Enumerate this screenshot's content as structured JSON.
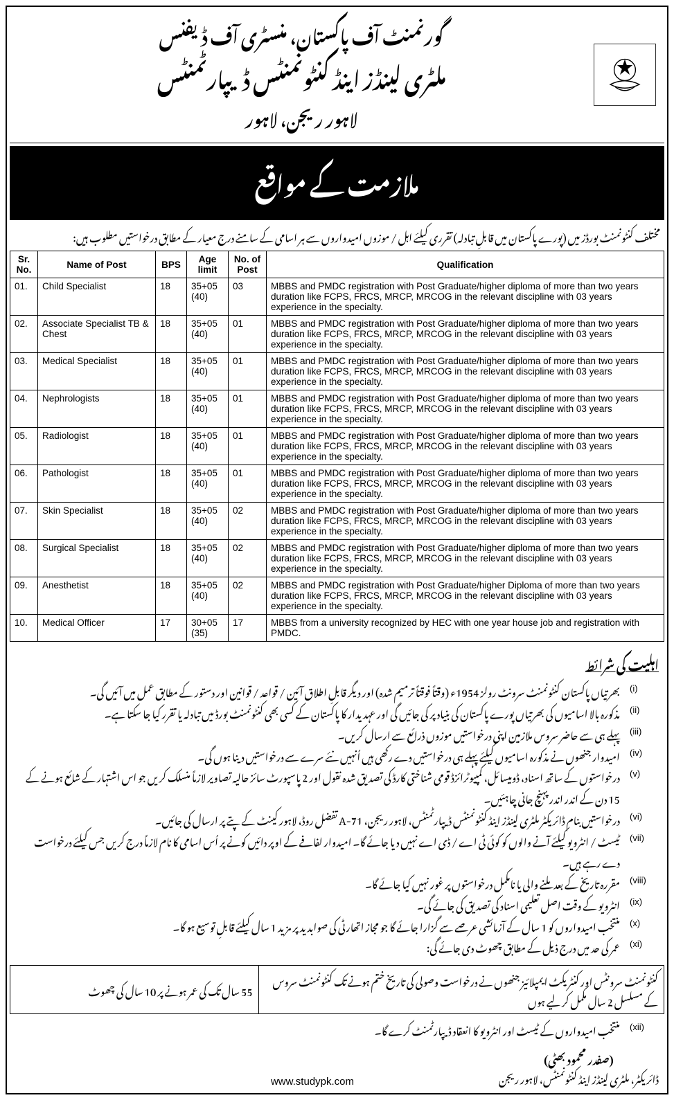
{
  "header": {
    "line1": "گورنمنٹ آف پاکستان، منسٹری آف ڈیفنس",
    "line2": "ملٹری لینڈز اینڈ کنٹونمنٹس ڈیپارٹمنٹس",
    "line3": "لاہور ریجن، لاہور"
  },
  "title_bar": "ملازمت کے مواقع",
  "intro": "مختلف کنٹونمنٹ بورڈز میں (پورے پاکستان میں قابلِ تبادلہ) تقرری کیلئے اہل / موزوں امیدواروں سے ہر اسامی کے سامنے درج معیار کے مطابق درخواستیں مطلوب ہیں:",
  "table": {
    "columns": [
      "Sr. No.",
      "Name of Post",
      "BPS",
      "Age limit",
      "No. of Post",
      "Qualification"
    ],
    "rows": [
      {
        "sr": "01.",
        "name": "Child Specialist",
        "bps": "18",
        "age": "35+05 (40)",
        "num": "03",
        "qual": "MBBS and PMDC registration with Post Graduate/higher diploma of more than two years duration like FCPS, FRCS, MRCP, MRCOG in the relevant discipline with 03 years experience in the specialty."
      },
      {
        "sr": "02.",
        "name": "Associate Specialist TB & Chest",
        "bps": "18",
        "age": "35+05 (40)",
        "num": "01",
        "qual": "MBBS and PMDC registration with Post Graduate/higher diploma of more than two years duration like FCPS, FRCS, MRCP, MRCOG in the relevant discipline with 03 years experience in the specialty."
      },
      {
        "sr": "03.",
        "name": "Medical Specialist",
        "bps": "18",
        "age": "35+05 (40)",
        "num": "01",
        "qual": "MBBS and PMDC registration with Post Graduate/higher diploma of more than two years duration like FCPS, FRCS, MRCP, MRCOG in the relevant discipline with 03 years experience in the specialty."
      },
      {
        "sr": "04.",
        "name": "Nephrologists",
        "bps": "18",
        "age": "35+05 (40)",
        "num": "01",
        "qual": "MBBS and PMDC registration with Post Graduate/higher diploma of more than two years duration like FCPS, FRCS, MRCP, MRCOG in the relevant discipline with 03 years experience in the specialty."
      },
      {
        "sr": "05.",
        "name": "Radiologist",
        "bps": "18",
        "age": "35+05 (40)",
        "num": "01",
        "qual": "MBBS and PMDC registration with Post Graduate/higher diploma of more than two years duration like FCPS, FRCS, MRCP, MRCOG in the relevant discipline with 03 years experience in the specialty."
      },
      {
        "sr": "06.",
        "name": "Pathologist",
        "bps": "18",
        "age": "35+05 (40)",
        "num": "01",
        "qual": "MBBS and PMDC registration with Post Graduate/higher diploma of more than two years duration like FCPS, FRCS, MRCP, MRCOG in the relevant discipline with 03 years experience in the specialty."
      },
      {
        "sr": "07.",
        "name": "Skin Specialist",
        "bps": "18",
        "age": "35+05 (40)",
        "num": "02",
        "qual": "MBBS and PMDC registration with Post Graduate/higher diploma of more than two years duration like FCPS, FRCS, MRCP, MRCOG in the relevant discipline with 03 years experience in the specialty."
      },
      {
        "sr": "08.",
        "name": "Surgical Specialist",
        "bps": "18",
        "age": "35+05 (40)",
        "num": "02",
        "qual": "MBBS and PMDC registration with Post Graduate/higher diploma of more than two years duration like FCPS, FRCS, MRCP, MRCOG in the relevant discipline with 03 years experience in the specialty."
      },
      {
        "sr": "09.",
        "name": "Anesthetist",
        "bps": "18",
        "age": "35+05 (40)",
        "num": "02",
        "qual": "MBBS and PMDC registration with Post Graduate/higher Diploma of more than two years duration like FCPS, FRCS, MRCP, MRCOG in the relevant discipline with 03 years experience in the specialty."
      },
      {
        "sr": "10.",
        "name": "Medical Officer",
        "bps": "17",
        "age": "30+05 (35)",
        "num": "17",
        "qual": "MBBS from a university recognized by HEC with one year house job and registration with PMDC."
      }
    ]
  },
  "conditions_heading": "اہلیت کی شرائط",
  "conditions": [
    "بھرتیاں پاکستان کنٹونمنٹ سرونٹ رولز 1954ء (وقتاً فوقتاً ترمیم شدہ) اور دیگر قابلِ اطلاق آئین / قواعد / قوانین اور دستور کے مطابق عمل میں آئیں گی۔",
    "مذکورہ بالا اسامیوں کی بھرتیاں پورے پاکستان کی بنیاد پر کی جائیں گی اور عہدیدار کا پاکستان کے کسی بھی کنٹونمنٹ بورڈ میں تبادلہ یا تقرر کیا جا سکتا ہے۔",
    "پہلے ہی سے حاضر سروس ملازمین اپنی درخواستیں موزوں ذرائع سے ارسال کریں۔",
    "امیدوار جنھوں نے مذکورہ اسامیوں کیلئے پہلے ہی درخواستیں دے رکھی ہیں اُنہیں نئے سرے سے درخواستیں دینا ہوں گی۔",
    "درخواستوں کے ساتھ اسناد، ڈومیسائل، کمپیوٹرائزڈ قومی شناختی کارڈ کی تصدیق شدہ نقول اور 2 پاسپورٹ سائز حالیہ تصاویر لازماً منسلک کریں جو اس اشتہار کے شائع ہونے کے 15 دن کے اندر اندر پہنچ جانی چاہئیں۔",
    "درخواستیں بنام ڈائریکٹر ملٹری لینڈز اینڈ کنٹونمنٹس ڈیپارٹمنٹس، لاہور ریجن، A-71 تفضل روڈ، لاہور کینٹ کے پتے پر ارسال کی جائیں۔",
    "ٹیسٹ / انٹرویو کیلئے آنے والوں کو کوئی ٹی اے / ڈی اے نہیں دیا جائے گا۔ امیدوار لفافے کے اوپر دائیں کونے پر اُس اسامی کا نام لازماً درج کریں جس کیلئے درخواست دے رہے ہیں۔",
    "مقررہ تاریخ کے بعد ملنے والی یا نامکمل درخواستوں پر غور نہیں کیا جائے گا۔",
    "انٹرویو کے وقت اصل تعلیمی اسناد کی تصدیق کی جائے گی۔",
    "منتخب امیدواروں کو 1 سال کے آزمائشی عرصے سے گزارا جائے گا جو مجاز اتھارٹی کی صوابدید پر مزید 1 سال کیلئے قابلِ توسیع ہو گا۔",
    "عمر کی حد میں درج ذیل کے مطابق چھوٹ دی جائے گی:"
  ],
  "relax_table": {
    "left": "کنٹونمنٹ سرونٹس اور کنٹریکٹ ایمپلائیز جنھوں نے درخواست وصولی کی تاریخ ختم ہونے تک کنٹونمنٹ سروس کے مسلسل 2 سال مکمل کر لیے ہوں",
    "right": "55 سال تک کی عمر ہونے پر 10 سال کی چھوٹ"
  },
  "condition_final": "منتخب امیدواروں کے ٹیسٹ اور انٹرویو کا انعقاد ڈیپارٹمنٹ کرے گا۔",
  "signature": {
    "name": "(صفدر محمود بھٹی)",
    "designation": "ڈائریکٹر، ملٹری لینڈز اینڈ کنٹونمنٹس، لاہور ریجن"
  },
  "site_url": "www.studypk.com"
}
